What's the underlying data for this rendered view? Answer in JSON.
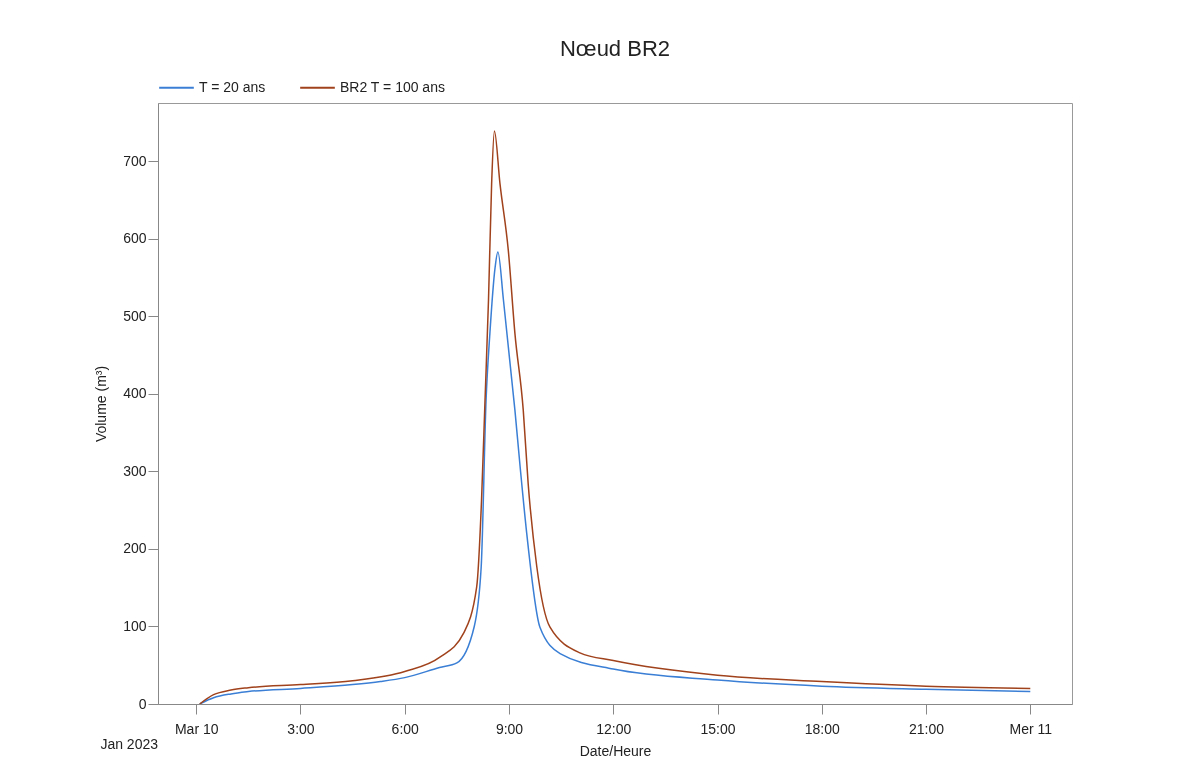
{
  "chart_data": {
    "type": "line",
    "title": "Nœud BR2",
    "xlabel": "Date/Heure",
    "ylabel": "Volume (m³)",
    "annotations": [
      "Jan 2023"
    ],
    "xlim": [
      -1.1,
      25.2
    ],
    "ylim": [
      0,
      775
    ],
    "xticks": [
      {
        "value": 0,
        "label": "Mar 10"
      },
      {
        "value": 3,
        "label": "3:00"
      },
      {
        "value": 6,
        "label": "6:00"
      },
      {
        "value": 9,
        "label": "9:00"
      },
      {
        "value": 12,
        "label": "12:00"
      },
      {
        "value": 15,
        "label": "15:00"
      },
      {
        "value": 18,
        "label": "18:00"
      },
      {
        "value": 21,
        "label": "21:00"
      },
      {
        "value": 24,
        "label": "Mer 11"
      }
    ],
    "yticks": [
      0,
      100,
      200,
      300,
      400,
      500,
      600,
      700
    ],
    "grid": false,
    "legend": "top left",
    "marker": "none",
    "line_style": "solid",
    "series": [
      {
        "name": "T = 20 ans",
        "color": "#3a7fd5",
        "x": [
          0.1,
          0.5,
          1,
          1.5,
          3,
          4.5,
          5.3,
          6,
          7,
          7.5,
          8,
          8.2,
          8.34,
          8.45,
          8.6,
          8.68,
          8.84,
          9.17,
          9.32,
          9.51,
          9.89,
          10.47,
          12,
          15,
          18,
          21,
          24
        ],
        "values": [
          0,
          8,
          13,
          16,
          20,
          25,
          29,
          34,
          47,
          53,
          100,
          177,
          392,
          478,
          563,
          583,
          521,
          379,
          306,
          220,
          99,
          65,
          45,
          31,
          23,
          19,
          16
        ]
      },
      {
        "name": "BR2 T = 100 ans",
        "color": "#a0421c",
        "x": [
          0.1,
          0.5,
          1,
          1.5,
          3,
          4.5,
          6,
          7,
          7.69,
          8.07,
          8.21,
          8.31,
          8.41,
          8.5,
          8.58,
          8.74,
          8.98,
          9.17,
          9.41,
          9.55,
          9.8,
          10.18,
          11.04,
          12,
          15,
          18,
          21,
          24
        ],
        "values": [
          0,
          12,
          18,
          21,
          25,
          30,
          42,
          60,
          91,
          151,
          263,
          392,
          521,
          671,
          739,
          671,
          585,
          478,
          379,
          285,
          177,
          99,
          66,
          56,
          37,
          29,
          23,
          20
        ]
      }
    ]
  }
}
